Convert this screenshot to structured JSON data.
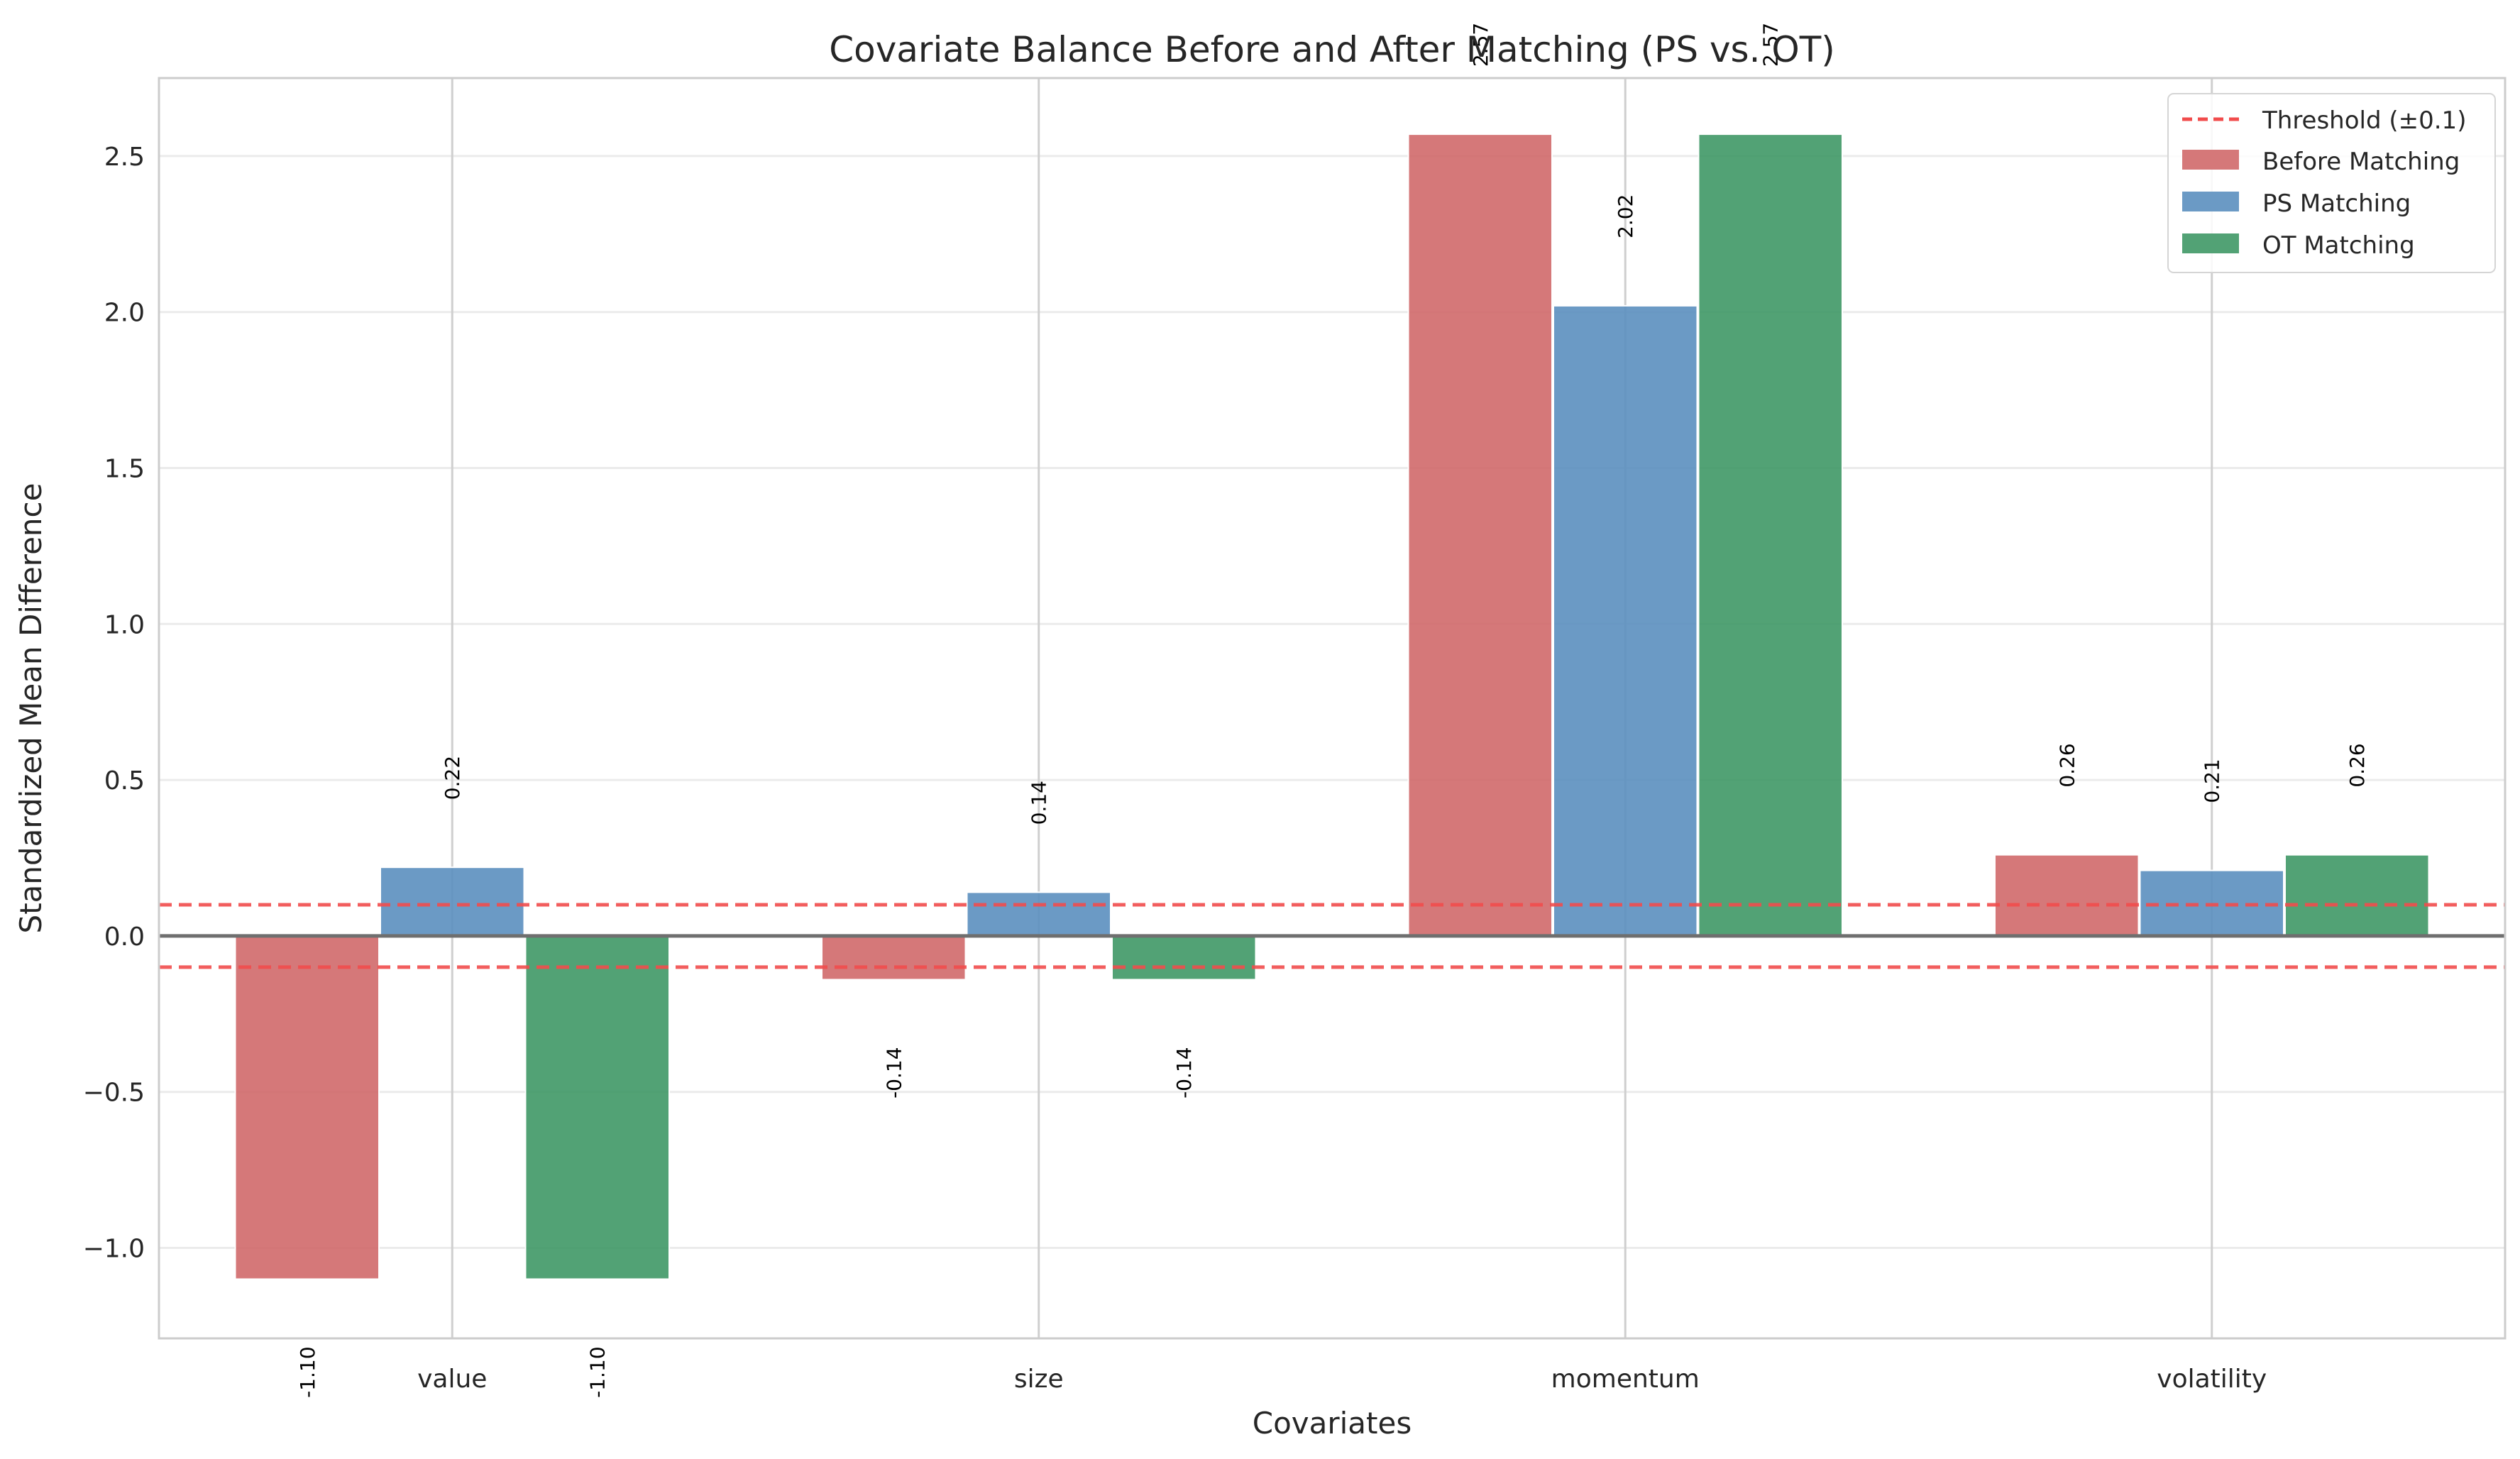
{
  "chart_data": {
    "type": "bar",
    "title": "Covariate Balance Before and After Matching (PS vs. OT)",
    "xlabel": "Covariates",
    "ylabel": "Standardized Mean Difference",
    "categories": [
      "value",
      "size",
      "momentum",
      "volatility"
    ],
    "series": [
      {
        "name": "Before Matching",
        "color": "#d0696a",
        "values": [
          -1.1,
          -0.14,
          2.57,
          0.26
        ],
        "labels": [
          "-1.10",
          "-0.14",
          "2.57",
          "0.26"
        ]
      },
      {
        "name": "PS Matching",
        "color": "#5b8fbf",
        "values": [
          0.22,
          0.14,
          2.02,
          0.21
        ],
        "labels": [
          "0.22",
          "0.14",
          "2.02",
          "0.21"
        ]
      },
      {
        "name": "OT Matching",
        "color": "#3f9866",
        "values": [
          -1.1,
          -0.14,
          2.57,
          0.26
        ],
        "labels": [
          "-1.10",
          "-0.14",
          "2.57",
          "0.26"
        ]
      }
    ],
    "threshold": {
      "label": "Threshold (±0.1)",
      "value": 0.1,
      "color": "#f14c4c"
    },
    "ylim": [
      -1.29,
      2.75
    ],
    "yticks": [
      -1.0,
      -0.5,
      0.0,
      0.5,
      1.0,
      1.5,
      2.0,
      2.5
    ],
    "ytick_labels": [
      "−1.0",
      "−0.5",
      "0.0",
      "0.5",
      "1.0",
      "1.5",
      "2.0",
      "2.5"
    ],
    "grid": true,
    "legend_position": "top-right"
  }
}
